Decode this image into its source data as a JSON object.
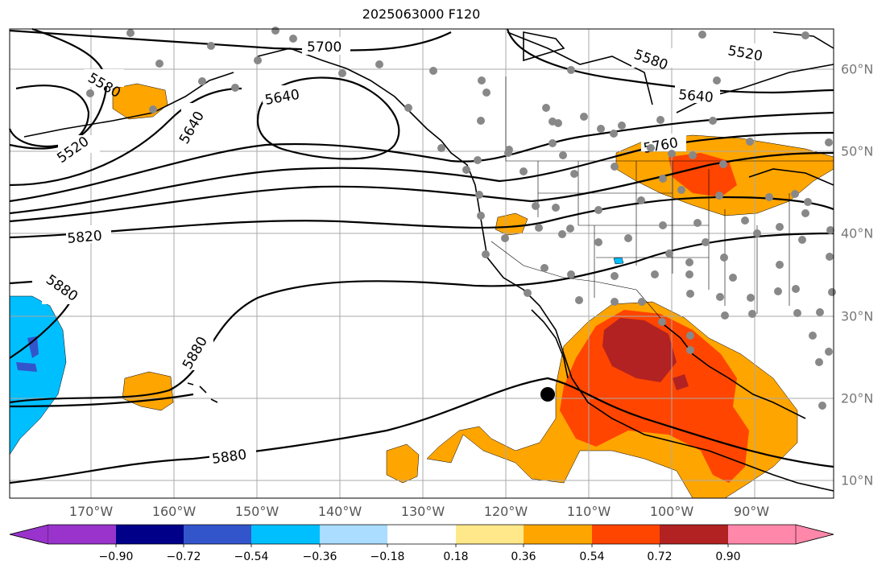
{
  "title": "2025063000 F120",
  "lon_labels": [
    "170°W",
    "160°W",
    "150°W",
    "140°W",
    "130°W",
    "120°W",
    "110°W",
    "100°W",
    "90°W"
  ],
  "lat_labels": [
    "60°N",
    "50°N",
    "40°N",
    "30°N",
    "20°N",
    "10°N"
  ],
  "contour_labels": [
    "5700",
    "5580",
    "5520",
    "5640",
    "5640",
    "5580",
    "5520",
    "5640",
    "5760",
    "5820",
    "5880",
    "5880",
    "5880"
  ],
  "colorbar": {
    "ticks": [
      "−0.90",
      "−0.72",
      "−0.54",
      "−0.36",
      "−0.18",
      "0.18",
      "0.36",
      "0.54",
      "0.72",
      "0.90"
    ],
    "colors": [
      "#9933cc",
      "#000088",
      "#3355cc",
      "#00bfff",
      "#aaddff",
      "#ffffff",
      "#ffe88a",
      "#ffa500",
      "#ff4500",
      "#b22222",
      "#ff88aa"
    ]
  },
  "fill_colors": {
    "orange": "#ffa500",
    "red": "#ff4500",
    "darkred": "#b22222",
    "blue": "#00bfff",
    "darkblue": "#3355cc",
    "sky": "#aaddff"
  },
  "marker_color": "#888888"
}
